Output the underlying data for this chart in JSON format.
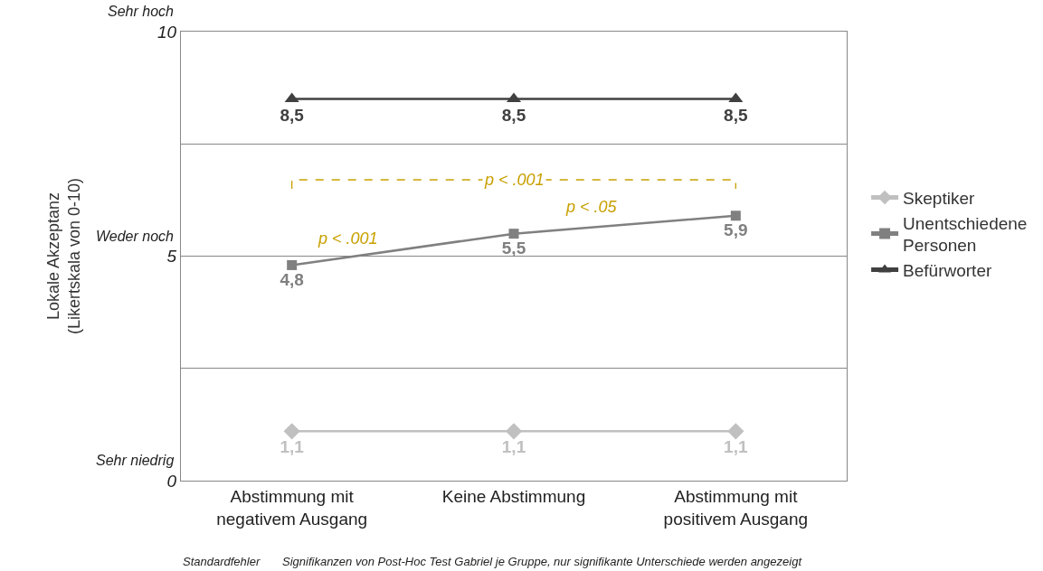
{
  "chart_data": {
    "type": "line",
    "ylabel": "Lokale Akzeptanz\n(Likertskala von 0-10)",
    "categories": [
      "Abstimmung mit\nnegativem Ausgang",
      "Keine Abstimmung",
      "Abstimmung mit\npositivem Ausgang"
    ],
    "series": [
      {
        "name": "Skeptiker",
        "color": "#c0c0c0",
        "marker": "diamond",
        "values": [
          1.1,
          1.1,
          1.1
        ],
        "value_labels": [
          "1,1",
          "1,1",
          "1,1"
        ]
      },
      {
        "name": "Unentschiedene\nPersonen",
        "color": "#808080",
        "marker": "square",
        "values": [
          4.8,
          5.5,
          5.9
        ],
        "value_labels": [
          "4,8",
          "5,5",
          "5,9"
        ]
      },
      {
        "name": "Befürworter",
        "color": "#404040",
        "marker": "triangle",
        "values": [
          8.5,
          8.5,
          8.5
        ],
        "value_labels": [
          "8,5",
          "8,5",
          "8,5"
        ]
      }
    ],
    "ylim": [
      0,
      10
    ],
    "yticks": [
      0,
      {
        "value": 2.5,
        "label": null
      },
      5,
      {
        "value": 7.5,
        "label": null
      },
      10
    ],
    "grid": "y",
    "legend": "right",
    "line_style": "solid",
    "annotations": [
      "p < .001",
      "p < .001",
      "p < .05",
      "Sehr hoch",
      "Weder noch",
      "Sehr niedrig",
      "Standardfehler",
      "Signifikanzen von Post-Hoc Test Gabriel je Gruppe, nur signifikante Unterschiede werden angezeigt"
    ]
  }
}
